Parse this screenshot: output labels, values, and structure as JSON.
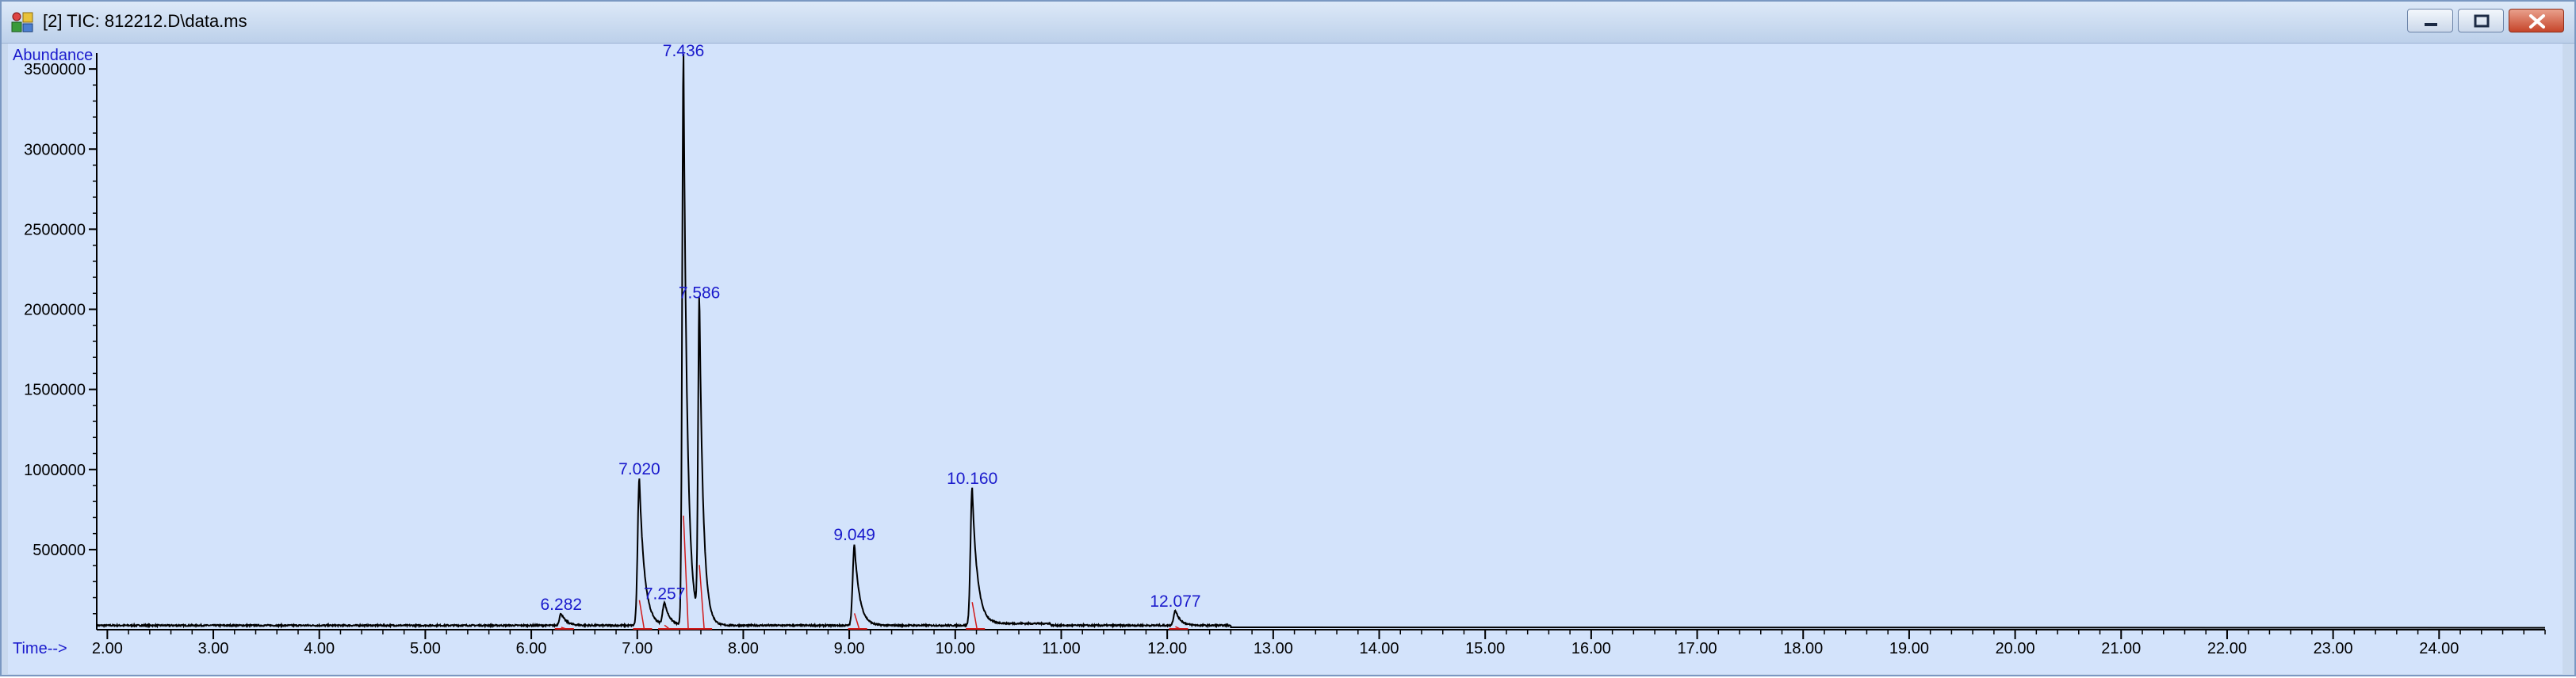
{
  "window": {
    "title": "[2] TIC: 812212.D\\data.ms",
    "icons": {
      "app": "chromatogram-app-icon",
      "minimize": "minimize-icon",
      "restore": "restore-icon",
      "close": "close-icon"
    },
    "colors": {
      "plot_background": "#d3e3fb",
      "trace": "#000000",
      "baseline": "#d11a1a",
      "label": "#1a1acc"
    }
  },
  "chart_data": {
    "type": "line",
    "ylabel": "Abundance",
    "xlabel": "Time-->",
    "xlim": [
      1.9,
      25.0
    ],
    "ylim": [
      0,
      3560000
    ],
    "x_ticks": [
      "2.00",
      "3.00",
      "4.00",
      "5.00",
      "6.00",
      "7.00",
      "8.00",
      "9.00",
      "10.00",
      "11.00",
      "12.00",
      "13.00",
      "14.00",
      "15.00",
      "16.00",
      "17.00",
      "18.00",
      "19.00",
      "20.00",
      "21.00",
      "22.00",
      "23.00",
      "24.00"
    ],
    "y_ticks": [
      "500000",
      "1000000",
      "1500000",
      "2000000",
      "2500000",
      "3000000",
      "3500000"
    ],
    "peaks": [
      {
        "label": "6.282",
        "rt": 6.282,
        "abundance": 75000
      },
      {
        "label": "7.020",
        "rt": 7.02,
        "abundance": 920000
      },
      {
        "label": "7.257",
        "rt": 7.257,
        "abundance": 140000
      },
      {
        "label": "7.436",
        "rt": 7.436,
        "abundance": 3560000
      },
      {
        "label": "7.586",
        "rt": 7.586,
        "abundance": 2020000
      },
      {
        "label": "9.049",
        "rt": 9.049,
        "abundance": 510000
      },
      {
        "label": "10.160",
        "rt": 10.16,
        "abundance": 860000
      },
      {
        "label": "12.077",
        "rt": 12.077,
        "abundance": 95000
      }
    ]
  }
}
